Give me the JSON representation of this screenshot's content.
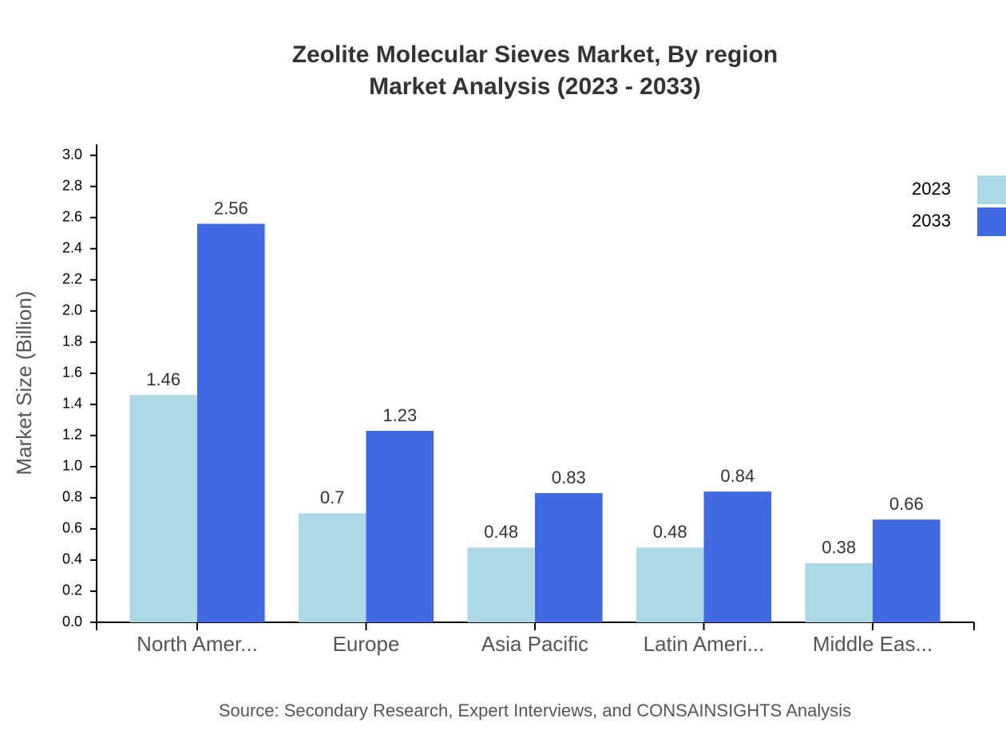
{
  "chart_data": {
    "type": "bar",
    "title": "Zeolite Molecular Sieves Market, By region",
    "subtitle": "Market Analysis (2023 - 2033)",
    "y_label": "Market Size (Billion)",
    "source": "Source: Secondary Research, Expert Interviews, and CONSAINSIGHTS Analysis",
    "categories": [
      "North Amer...",
      "Europe",
      "Asia Pacific",
      "Latin Ameri...",
      "Middle Eas..."
    ],
    "series": [
      {
        "name": "2023",
        "color": "#add8e6",
        "values": [
          1.46,
          0.7,
          0.48,
          0.48,
          0.38
        ]
      },
      {
        "name": "2033",
        "color": "#4169e1",
        "values": [
          2.56,
          1.23,
          0.83,
          0.84,
          0.66
        ]
      }
    ],
    "ylim": [
      0,
      3.07
    ],
    "yticks": [
      {
        "value": 0,
        "label": "0.0"
      },
      0.2,
      0.4,
      0.6,
      0.8,
      {
        "value": 1,
        "label": "1.0"
      },
      1.2,
      1.4,
      1.6,
      1.8,
      {
        "value": 2,
        "label": "2.0"
      },
      2.2,
      2.4,
      2.6,
      2.8,
      {
        "value": 3,
        "label": "3.0"
      }
    ],
    "legend": "top-right"
  }
}
